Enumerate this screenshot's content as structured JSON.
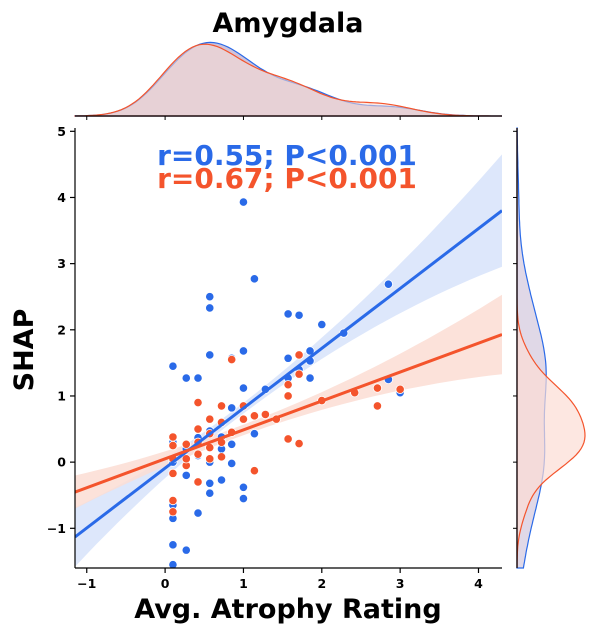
{
  "chart_data": {
    "type": "scatter",
    "title": "Amygdala",
    "xlabel": "Avg. Atrophy Rating",
    "ylabel": "SHAP",
    "xlim": [
      -1.15,
      4.3
    ],
    "ylim": [
      -1.6,
      5.05
    ],
    "xticks": [
      -1,
      0,
      1,
      2,
      3,
      4
    ],
    "yticks": [
      -1,
      0,
      1,
      2,
      3,
      4,
      5
    ],
    "grid": false,
    "colors": {
      "blue": "#2a6ae8",
      "orange": "#f4542c",
      "blue_band": "#dbe6fb",
      "orange_band": "#fcddd4",
      "overlap_fill": "#c7b8d4"
    },
    "annotations": [
      {
        "text": "r=0.55; P<0.001",
        "color": "#2a6ae8"
      },
      {
        "text": "r=0.67; P<0.001",
        "color": "#f4542c"
      }
    ],
    "series": [
      {
        "color": "#2a6ae8",
        "regression": {
          "slope": 0.905,
          "intercept": -0.09,
          "band_ci_at_xmin": 0.45,
          "band_ci_at_xmax": 0.85
        },
        "points": [
          [
            0.1,
            -1.55
          ],
          [
            0.1,
            -1.25
          ],
          [
            0.1,
            -0.85
          ],
          [
            0.1,
            -0.65
          ],
          [
            0.1,
            1.45
          ],
          [
            0.1,
            0.0
          ],
          [
            0.1,
            0.3
          ],
          [
            0.27,
            -1.33
          ],
          [
            0.27,
            -0.2
          ],
          [
            0.27,
            0.2
          ],
          [
            0.27,
            1.27
          ],
          [
            0.42,
            1.27
          ],
          [
            0.42,
            -0.77
          ],
          [
            0.42,
            0.1
          ],
          [
            0.42,
            0.37
          ],
          [
            0.57,
            -0.47
          ],
          [
            0.57,
            0.47
          ],
          [
            0.57,
            1.62
          ],
          [
            0.57,
            2.33
          ],
          [
            0.57,
            2.5
          ],
          [
            0.57,
            0.0
          ],
          [
            0.57,
            -0.32
          ],
          [
            0.72,
            0.38
          ],
          [
            0.72,
            0.2
          ],
          [
            0.72,
            -0.27
          ],
          [
            0.85,
            -0.02
          ],
          [
            0.85,
            0.27
          ],
          [
            0.85,
            0.82
          ],
          [
            0.85,
            1.57
          ],
          [
            1.0,
            3.93
          ],
          [
            1.0,
            1.68
          ],
          [
            1.0,
            1.12
          ],
          [
            1.0,
            -0.38
          ],
          [
            1.0,
            -0.55
          ],
          [
            1.14,
            2.77
          ],
          [
            1.14,
            0.43
          ],
          [
            1.28,
            1.1
          ],
          [
            1.57,
            2.24
          ],
          [
            1.57,
            1.57
          ],
          [
            1.57,
            1.27
          ],
          [
            1.71,
            2.22
          ],
          [
            1.71,
            1.4
          ],
          [
            1.85,
            1.68
          ],
          [
            1.85,
            1.27
          ],
          [
            1.85,
            1.53
          ],
          [
            2.0,
            2.08
          ],
          [
            2.28,
            1.95
          ],
          [
            2.85,
            2.69
          ],
          [
            2.85,
            1.25
          ],
          [
            3.0,
            1.05
          ]
        ]
      },
      {
        "color": "#f4542c",
        "regression": {
          "slope": 0.437,
          "intercept": 0.05,
          "band_ci_at_xmin": 0.25,
          "band_ci_at_xmax": 0.6
        },
        "points": [
          [
            0.1,
            -0.58
          ],
          [
            0.1,
            -0.75
          ],
          [
            0.1,
            -0.17
          ],
          [
            0.1,
            0.05
          ],
          [
            0.1,
            0.25
          ],
          [
            0.1,
            0.38
          ],
          [
            0.27,
            -0.05
          ],
          [
            0.27,
            0.05
          ],
          [
            0.27,
            0.27
          ],
          [
            0.42,
            0.9
          ],
          [
            0.42,
            0.5
          ],
          [
            0.42,
            0.3
          ],
          [
            0.42,
            0.12
          ],
          [
            0.42,
            -0.3
          ],
          [
            0.57,
            0.65
          ],
          [
            0.57,
            0.43
          ],
          [
            0.57,
            0.22
          ],
          [
            0.57,
            0.05
          ],
          [
            0.72,
            0.85
          ],
          [
            0.72,
            0.6
          ],
          [
            0.72,
            0.3
          ],
          [
            0.72,
            0.08
          ],
          [
            0.85,
            1.55
          ],
          [
            0.85,
            0.45
          ],
          [
            1.0,
            0.85
          ],
          [
            1.0,
            0.65
          ],
          [
            1.14,
            0.7
          ],
          [
            1.14,
            -0.13
          ],
          [
            1.28,
            0.72
          ],
          [
            1.42,
            0.65
          ],
          [
            1.57,
            1.17
          ],
          [
            1.57,
            1.0
          ],
          [
            1.57,
            0.35
          ],
          [
            1.71,
            1.62
          ],
          [
            1.71,
            1.33
          ],
          [
            1.71,
            0.28
          ],
          [
            2.0,
            0.93
          ],
          [
            2.42,
            1.05
          ],
          [
            2.71,
            1.12
          ],
          [
            2.71,
            0.85
          ],
          [
            3.0,
            1.1
          ]
        ]
      }
    ]
  }
}
